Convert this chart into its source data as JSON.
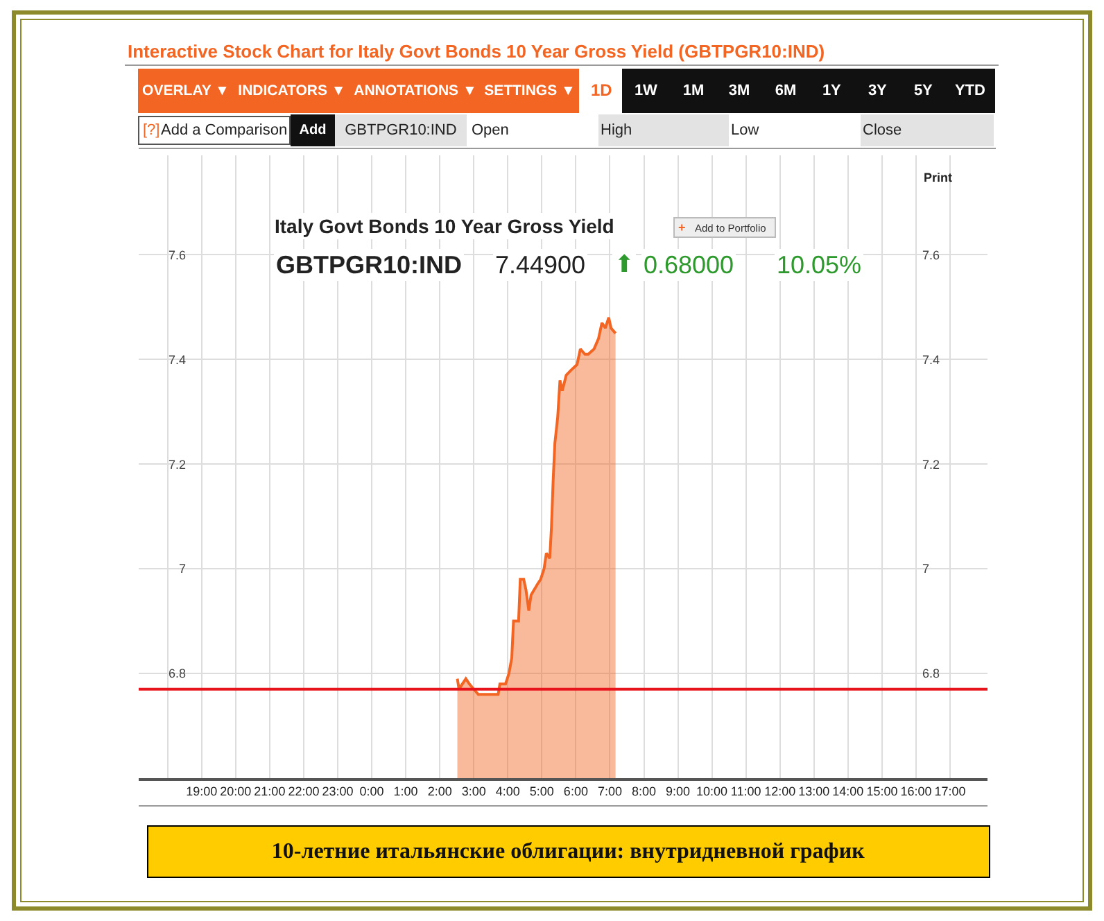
{
  "chart_data": {
    "type": "area",
    "title": "Interactive Stock Chart for Italy Govt Bonds 10 Year Gross Yield (GBTPGR10:IND)",
    "subtitle": "Italy Govt Bonds 10 Year Gross Yield",
    "x": [
      "--11-09T02:31",
      "--11-09T02:34",
      "--11-09T02:40",
      "--11-09T02:46",
      "--11-09T02:52",
      "--11-09T03:00",
      "--11-09T03:08",
      "--11-09T03:20",
      "--11-09T03:32",
      "--11-09T03:43",
      "--11-09T03:46",
      "--11-09T03:56",
      "--11-09T04:02",
      "--11-09T04:07",
      "--11-09T04:10",
      "--11-09T04:19",
      "--11-09T04:22",
      "--11-09T04:28",
      "--11-09T04:32",
      "--11-09T04:37",
      "--11-09T04:41",
      "--11-09T04:52",
      "--11-09T04:58",
      "--11-09T05:04",
      "--11-09T05:08",
      "--11-09T05:14",
      "--11-09T05:17",
      "--11-09T05:20",
      "--11-09T05:23",
      "--11-09T05:28",
      "--11-09T05:32",
      "--11-09T05:36",
      "--11-09T05:43",
      "--11-09T05:52",
      "--11-09T06:02",
      "--11-09T06:08",
      "--11-09T06:16",
      "--11-09T06:22",
      "--11-09T06:32",
      "--11-09T06:40",
      "--11-09T06:46",
      "--11-09T06:52",
      "--11-09T06:58",
      "--11-09T07:02",
      "--11-09T07:10"
    ],
    "series": [
      {
        "color": "#f26522",
        "values": [
          6.79,
          6.77,
          6.78,
          6.79,
          6.78,
          6.77,
          6.76,
          6.76,
          6.76,
          6.76,
          6.78,
          6.78,
          6.8,
          6.83,
          6.9,
          6.9,
          6.98,
          6.98,
          6.96,
          6.92,
          6.95,
          6.97,
          6.98,
          7.0,
          7.03,
          7.02,
          7.08,
          7.17,
          7.24,
          7.29,
          7.36,
          7.34,
          7.37,
          7.38,
          7.39,
          7.42,
          7.41,
          7.41,
          7.42,
          7.44,
          7.47,
          7.46,
          7.48,
          7.46,
          7.45
        ]
      }
    ],
    "xlim": [
      "--11-08T17:09",
      "--11-09T18:06"
    ],
    "xticks": [
      {
        "value": "--11-08T18:00",
        "label": null
      },
      {
        "value": "--11-08T19:00",
        "label": "19:00"
      },
      {
        "value": "--11-08T20:00",
        "label": "20:00"
      },
      {
        "value": "--11-08T21:00",
        "label": "21:00"
      },
      {
        "value": "--11-08T22:00",
        "label": "22:00"
      },
      {
        "value": "--11-08T23:00",
        "label": "23:00"
      },
      {
        "value": "--11-09T00:00",
        "label": "0:00"
      },
      {
        "value": "--11-09T01:00",
        "label": "1:00"
      },
      {
        "value": "--11-09T02:00",
        "label": "2:00"
      },
      {
        "value": "--11-09T03:00",
        "label": "3:00"
      },
      {
        "value": "--11-09T04:00",
        "label": "4:00"
      },
      {
        "value": "--11-09T05:00",
        "label": "5:00"
      },
      {
        "value": "--11-09T06:00",
        "label": "6:00"
      },
      {
        "value": "--11-09T07:00",
        "label": "7:00"
      },
      {
        "value": "--11-09T08:00",
        "label": "8:00"
      },
      {
        "value": "--11-09T09:00",
        "label": "9:00"
      },
      {
        "value": "--11-09T10:00",
        "label": "10:00"
      },
      {
        "value": "--11-09T11:00",
        "label": "11:00"
      },
      {
        "value": "--11-09T12:00",
        "label": "12:00"
      },
      {
        "value": "--11-09T13:00",
        "label": "13:00"
      },
      {
        "value": "--11-09T14:00",
        "label": "14:00"
      },
      {
        "value": "--11-09T15:00",
        "label": "15:00"
      },
      {
        "value": "--11-09T16:00",
        "label": "16:00"
      },
      {
        "value": "--11-09T17:00",
        "label": "17:00"
      }
    ],
    "ylim": [
      6.6,
      7.79
    ],
    "yticks": [
      6.8,
      7,
      7.2,
      7.4,
      7.6
    ],
    "y2lim": [
      6.6,
      7.79
    ],
    "y2ticks": [
      6.8,
      7,
      7.2,
      7.4,
      7.6
    ],
    "ref_lines": [
      {
        "axis": "y",
        "value": 6.77,
        "color": "#e8141b"
      }
    ],
    "grid": true,
    "annotations": [
      "OVERLAY ▼",
      "INDICATORS ▼",
      "ANNOTATIONS ▼",
      "SETTINGS ▼",
      "1D",
      "1W",
      "1M",
      "3M",
      "6M",
      "1Y",
      "3Y",
      "5Y",
      "YTD",
      "[?]",
      "Add a Comparison",
      "Add",
      "GBTPGR10:IND",
      "Open",
      "High",
      "Low",
      "Close",
      "+",
      "Add to Portfolio",
      "GBTPGR10:IND",
      "7.44900",
      "⬆",
      "0.68000",
      "10.05%",
      "Print",
      "10-летние итальянские облигации: внутридневной график"
    ]
  }
}
